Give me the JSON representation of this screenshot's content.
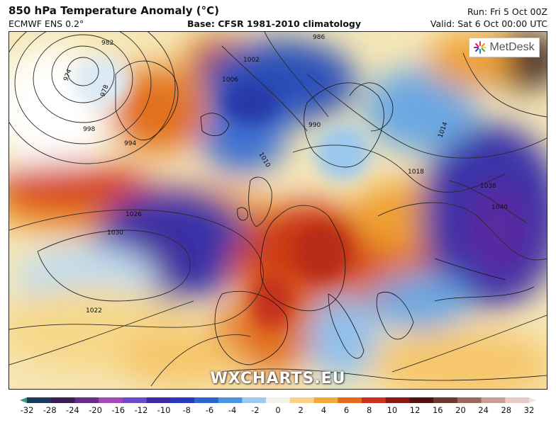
{
  "header": {
    "title": "850 hPa Temperature Anomaly (°C)",
    "model": "ECMWF ENS 0.2°",
    "base": "Base: CFSR 1981-2010 climatology",
    "run": "Run: Fri 5 Oct 00Z",
    "valid": "Valid: Sat 6 Oct 00:00 UTC"
  },
  "logo": {
    "text": "MetDesk",
    "icon": "star-burst-icon"
  },
  "watermark": "WXCHARTS.EU",
  "colorbar": {
    "ticks": [
      "-32",
      "-28",
      "-24",
      "-20",
      "-16",
      "-12",
      "-10",
      "-8",
      "-6",
      "-4",
      "-2",
      "0",
      "2",
      "4",
      "6",
      "8",
      "10",
      "12",
      "16",
      "20",
      "24",
      "28",
      "32"
    ],
    "colors": [
      "#2e9e7e",
      "#1c3b58",
      "#3b1e4e",
      "#6a2b8e",
      "#a24ab8",
      "#6b4bc6",
      "#3b2ba8",
      "#2838b8",
      "#2f64cc",
      "#4b95e0",
      "#9fcbee",
      "#f4f1ea",
      "#f7d488",
      "#f0a93a",
      "#e46a1d",
      "#c9331c",
      "#8c1a14",
      "#54120f",
      "#6b3a2e",
      "#9a6a5a",
      "#c79e94",
      "#e7c9c7",
      "#f5dfe6"
    ]
  },
  "isobars": [
    {
      "label": "982"
    },
    {
      "label": "974"
    },
    {
      "label": "978"
    },
    {
      "label": "986"
    },
    {
      "label": "990"
    },
    {
      "label": "994"
    },
    {
      "label": "998"
    },
    {
      "label": "1002"
    },
    {
      "label": "1006"
    },
    {
      "label": "1010"
    },
    {
      "label": "1014"
    },
    {
      "label": "1018"
    },
    {
      "label": "1022"
    },
    {
      "label": "1026"
    },
    {
      "label": "1030"
    },
    {
      "label": "1038"
    },
    {
      "label": "1040"
    }
  ]
}
